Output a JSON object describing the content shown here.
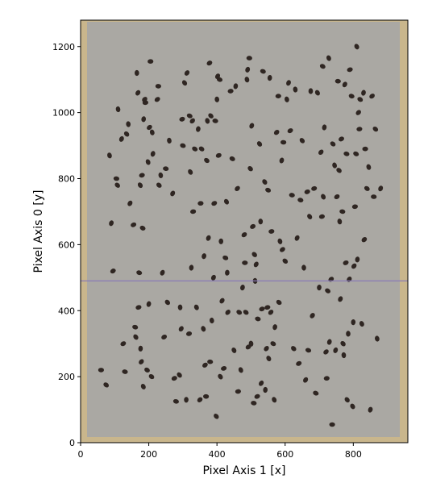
{
  "chart_data": {
    "type": "image",
    "title": "",
    "xlabel": "Pixel Axis 1 [x]",
    "ylabel": "Pixel Axis 0 [y]",
    "xlim": [
      0,
      960
    ],
    "ylim": [
      0,
      1280
    ],
    "xticks": [
      0,
      200,
      400,
      600,
      800
    ],
    "yticks": [
      0,
      200,
      400,
      600,
      800,
      1000,
      1200
    ],
    "grid": false,
    "image_description": "photograph of small dark seeds scattered on a grey tray",
    "background_color": "#aaa8a3",
    "border_color": "#c9b68c",
    "seed_color": "#2f2622",
    "overlay_line": {
      "y": 490,
      "color": "#8a7bb5"
    },
    "seeds": [
      [
        60,
        220
      ],
      [
        75,
        175
      ],
      [
        85,
        870
      ],
      [
        90,
        665
      ],
      [
        95,
        520
      ],
      [
        105,
        800
      ],
      [
        108,
        780
      ],
      [
        110,
        1010
      ],
      [
        120,
        920
      ],
      [
        125,
        300
      ],
      [
        130,
        215
      ],
      [
        135,
        935
      ],
      [
        140,
        965
      ],
      [
        145,
        725
      ],
      [
        155,
        660
      ],
      [
        160,
        350
      ],
      [
        162,
        320
      ],
      [
        165,
        1120
      ],
      [
        168,
        1060
      ],
      [
        170,
        410
      ],
      [
        172,
        515
      ],
      [
        175,
        780
      ],
      [
        176,
        285
      ],
      [
        178,
        245
      ],
      [
        180,
        810
      ],
      [
        182,
        650
      ],
      [
        184,
        170
      ],
      [
        185,
        980
      ],
      [
        188,
        1040
      ],
      [
        190,
        1030
      ],
      [
        195,
        220
      ],
      [
        198,
        850
      ],
      [
        200,
        420
      ],
      [
        202,
        955
      ],
      [
        205,
        1155
      ],
      [
        208,
        200
      ],
      [
        210,
        940
      ],
      [
        212,
        875
      ],
      [
        225,
        1040
      ],
      [
        228,
        1080
      ],
      [
        230,
        780
      ],
      [
        235,
        810
      ],
      [
        240,
        515
      ],
      [
        245,
        320
      ],
      [
        250,
        830
      ],
      [
        255,
        425
      ],
      [
        260,
        915
      ],
      [
        270,
        755
      ],
      [
        275,
        195
      ],
      [
        280,
        125
      ],
      [
        290,
        205
      ],
      [
        292,
        410
      ],
      [
        295,
        345
      ],
      [
        298,
        980
      ],
      [
        300,
        900
      ],
      [
        305,
        1090
      ],
      [
        310,
        130
      ],
      [
        312,
        1120
      ],
      [
        318,
        330
      ],
      [
        320,
        990
      ],
      [
        322,
        820
      ],
      [
        325,
        530
      ],
      [
        328,
        975
      ],
      [
        330,
        700
      ],
      [
        335,
        890
      ],
      [
        340,
        410
      ],
      [
        345,
        950
      ],
      [
        350,
        130
      ],
      [
        352,
        725
      ],
      [
        355,
        890
      ],
      [
        360,
        345
      ],
      [
        362,
        565
      ],
      [
        365,
        235
      ],
      [
        368,
        140
      ],
      [
        370,
        855
      ],
      [
        372,
        975
      ],
      [
        375,
        620
      ],
      [
        378,
        1150
      ],
      [
        380,
        245
      ],
      [
        382,
        990
      ],
      [
        385,
        370
      ],
      [
        390,
        500
      ],
      [
        392,
        725
      ],
      [
        395,
        975
      ],
      [
        398,
        80
      ],
      [
        400,
        1040
      ],
      [
        402,
        1110
      ],
      [
        405,
        870
      ],
      [
        408,
        1100
      ],
      [
        410,
        200
      ],
      [
        412,
        610
      ],
      [
        415,
        430
      ],
      [
        420,
        225
      ],
      [
        425,
        560
      ],
      [
        428,
        730
      ],
      [
        430,
        515
      ],
      [
        432,
        395
      ],
      [
        440,
        1065
      ],
      [
        445,
        860
      ],
      [
        450,
        280
      ],
      [
        455,
        1080
      ],
      [
        460,
        770
      ],
      [
        462,
        155
      ],
      [
        465,
        395
      ],
      [
        470,
        220
      ],
      [
        475,
        470
      ],
      [
        480,
        630
      ],
      [
        482,
        545
      ],
      [
        485,
        395
      ],
      [
        488,
        1100
      ],
      [
        490,
        1130
      ],
      [
        492,
        290
      ],
      [
        495,
        1165
      ],
      [
        498,
        830
      ],
      [
        500,
        300
      ],
      [
        502,
        960
      ],
      [
        505,
        655
      ],
      [
        508,
        120
      ],
      [
        510,
        570
      ],
      [
        512,
        490
      ],
      [
        515,
        540
      ],
      [
        518,
        140
      ],
      [
        520,
        375
      ],
      [
        525,
        905
      ],
      [
        528,
        670
      ],
      [
        530,
        180
      ],
      [
        532,
        405
      ],
      [
        535,
        1125
      ],
      [
        540,
        790
      ],
      [
        542,
        160
      ],
      [
        545,
        285
      ],
      [
        548,
        410
      ],
      [
        550,
        765
      ],
      [
        552,
        255
      ],
      [
        555,
        1105
      ],
      [
        558,
        395
      ],
      [
        560,
        640
      ],
      [
        565,
        300
      ],
      [
        568,
        130
      ],
      [
        570,
        350
      ],
      [
        575,
        940
      ],
      [
        580,
        1050
      ],
      [
        582,
        425
      ],
      [
        585,
        610
      ],
      [
        590,
        855
      ],
      [
        592,
        585
      ],
      [
        595,
        910
      ],
      [
        600,
        550
      ],
      [
        605,
        1040
      ],
      [
        610,
        1090
      ],
      [
        615,
        945
      ],
      [
        620,
        750
      ],
      [
        625,
        285
      ],
      [
        630,
        1070
      ],
      [
        635,
        620
      ],
      [
        640,
        240
      ],
      [
        645,
        735
      ],
      [
        650,
        915
      ],
      [
        655,
        530
      ],
      [
        660,
        190
      ],
      [
        665,
        760
      ],
      [
        668,
        280
      ],
      [
        672,
        685
      ],
      [
        675,
        1065
      ],
      [
        680,
        385
      ],
      [
        685,
        770
      ],
      [
        690,
        150
      ],
      [
        695,
        1060
      ],
      [
        700,
        470
      ],
      [
        705,
        880
      ],
      [
        708,
        685
      ],
      [
        710,
        1140
      ],
      [
        712,
        745
      ],
      [
        715,
        955
      ],
      [
        720,
        275
      ],
      [
        722,
        195
      ],
      [
        725,
        460
      ],
      [
        728,
        1165
      ],
      [
        730,
        305
      ],
      [
        735,
        495
      ],
      [
        738,
        55
      ],
      [
        740,
        905
      ],
      [
        745,
        840
      ],
      [
        748,
        280
      ],
      [
        752,
        745
      ],
      [
        755,
        1095
      ],
      [
        758,
        825
      ],
      [
        760,
        670
      ],
      [
        762,
        435
      ],
      [
        765,
        920
      ],
      [
        768,
        700
      ],
      [
        770,
        300
      ],
      [
        772,
        265
      ],
      [
        775,
        1085
      ],
      [
        778,
        545
      ],
      [
        780,
        875
      ],
      [
        782,
        130
      ],
      [
        785,
        330
      ],
      [
        788,
        495
      ],
      [
        790,
        1130
      ],
      [
        795,
        1050
      ],
      [
        798,
        110
      ],
      [
        800,
        365
      ],
      [
        802,
        535
      ],
      [
        805,
        715
      ],
      [
        808,
        875
      ],
      [
        810,
        1200
      ],
      [
        812,
        555
      ],
      [
        815,
        1000
      ],
      [
        818,
        950
      ],
      [
        820,
        1040
      ],
      [
        825,
        360
      ],
      [
        830,
        1060
      ],
      [
        832,
        615
      ],
      [
        835,
        890
      ],
      [
        840,
        770
      ],
      [
        845,
        835
      ],
      [
        850,
        100
      ],
      [
        855,
        1050
      ],
      [
        860,
        745
      ],
      [
        865,
        950
      ],
      [
        870,
        315
      ],
      [
        880,
        770
      ]
    ]
  }
}
